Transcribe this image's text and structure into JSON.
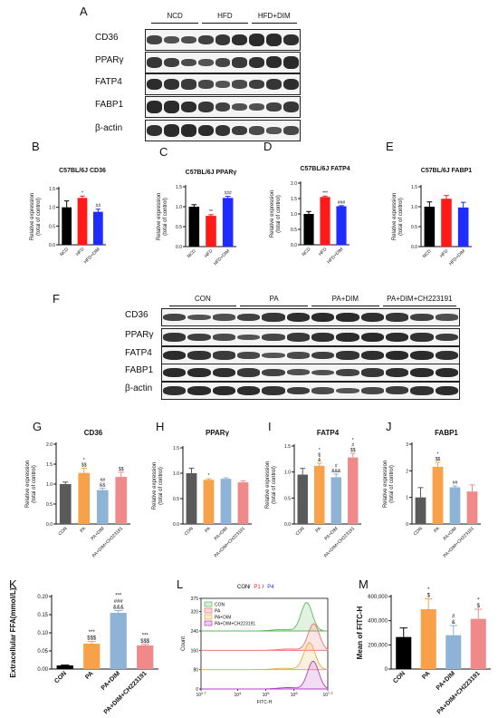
{
  "panels": {
    "A": "A",
    "B": "B",
    "C": "C",
    "D": "D",
    "E": "E",
    "F": "F",
    "G": "G",
    "H": "H",
    "I": "I",
    "J": "J",
    "K": "K",
    "L": "L",
    "M": "M"
  },
  "blotA": {
    "groups": [
      "NCD",
      "HFD",
      "HFD+DIM"
    ],
    "proteins": [
      "CD36",
      "PPARγ",
      "FATP4",
      "FABP1",
      "β-actin"
    ],
    "lanes": 9
  },
  "blotF": {
    "groups": [
      "CON",
      "PA",
      "PA+DIM",
      "PA+DIM+CH223191"
    ],
    "proteins": [
      "CD36",
      "PPARγ",
      "FATP4",
      "FABP1",
      "β-actin"
    ],
    "lanes": 12
  },
  "colors": {
    "black": "#000000",
    "red": "#ff1a1a",
    "blue": "#1f2bff",
    "gray": "#5a5a5a",
    "orange": "#f7a24a",
    "steel": "#8fb3d6",
    "salmon": "#f08a8a",
    "green": "#5cb85c",
    "purple": "#b040c0"
  },
  "chart_data": [
    {
      "id": "B",
      "type": "bar",
      "title": "C57BL/6J CD36",
      "ylabel": "Relative expression\n(total of control)",
      "categories": [
        "NCD",
        "HFD",
        "HFD+DIM"
      ],
      "values": [
        1.0,
        1.25,
        0.88
      ],
      "errors": [
        0.17,
        0.05,
        0.07
      ],
      "ylim": [
        0,
        1.5
      ],
      "yticks": [
        "0.0",
        "0.5",
        "1.0",
        "1.5"
      ],
      "annotations": [
        "",
        "*",
        "##"
      ],
      "colors": [
        "#000000",
        "#ff1a1a",
        "#1f2bff"
      ]
    },
    {
      "id": "C",
      "type": "bar",
      "title": "C57BL/6J PPARγ",
      "ylabel": "Relative expression\n(total of control)",
      "categories": [
        "NCD",
        "HFD",
        "HFD+DIM"
      ],
      "values": [
        1.0,
        0.77,
        1.22
      ],
      "errors": [
        0.05,
        0.03,
        0.04
      ],
      "ylim": [
        0,
        1.5
      ],
      "yticks": [
        "0.0",
        "0.5",
        "1.0",
        "1.5"
      ],
      "annotations": [
        "",
        "**",
        "###"
      ],
      "colors": [
        "#000000",
        "#ff1a1a",
        "#1f2bff"
      ]
    },
    {
      "id": "D",
      "type": "bar",
      "title": "C57BL/6J FATP4",
      "ylabel": "Relative expression\n(total of control)",
      "categories": [
        "NCD",
        "HFD",
        "HFD+DIM"
      ],
      "values": [
        1.0,
        1.55,
        1.25
      ],
      "errors": [
        0.08,
        0.03,
        0.02
      ],
      "ylim": [
        0,
        2.0
      ],
      "yticks": [
        "0.0",
        "0.5",
        "1.0",
        "1.5",
        "2.0"
      ],
      "annotations": [
        "",
        "***",
        "###"
      ],
      "colors": [
        "#000000",
        "#ff1a1a",
        "#1f2bff"
      ]
    },
    {
      "id": "E",
      "type": "bar",
      "title": "C57BL/6J FABP1",
      "ylabel": "Relative expression\n(total of control)",
      "categories": [
        "NCD",
        "HFD",
        "HFD+DIM"
      ],
      "values": [
        1.0,
        1.2,
        0.98
      ],
      "errors": [
        0.12,
        0.08,
        0.13
      ],
      "ylim": [
        0,
        1.5
      ],
      "yticks": [
        "0.0",
        "0.5",
        "1.0",
        "1.5"
      ],
      "annotations": [
        "",
        "",
        ""
      ],
      "colors": [
        "#000000",
        "#ff1a1a",
        "#1f2bff"
      ]
    },
    {
      "id": "G",
      "type": "bar",
      "title": "CD36",
      "ylabel": "Relative expression\n(total of control)",
      "categories": [
        "CON",
        "PA",
        "PA+DIM",
        "PA+DIM+CH223191"
      ],
      "values": [
        1.0,
        1.28,
        0.85,
        1.18
      ],
      "errors": [
        0.05,
        0.12,
        0.05,
        0.12
      ],
      "ylim": [
        0,
        2.0
      ],
      "yticks": [
        "0.0",
        "0.5",
        "1.0",
        "1.5",
        "2.0"
      ],
      "annotations": [
        "",
        "*\n$$",
        "##\n&&",
        "$$"
      ],
      "colors": [
        "#5a5a5a",
        "#f7a24a",
        "#8fb3d6",
        "#f08a8a"
      ]
    },
    {
      "id": "H",
      "type": "bar",
      "title": "PPARγ",
      "ylabel": "Relative expression\n(total of control)",
      "categories": [
        "CON",
        "PA",
        "PA+DIM",
        "PA+DIM+CH223191"
      ],
      "values": [
        1.0,
        0.87,
        0.89,
        0.82
      ],
      "errors": [
        0.1,
        0.02,
        0.02,
        0.03
      ],
      "ylim": [
        0,
        1.5
      ],
      "yticks": [
        "0.0",
        "0.5",
        "1.0",
        "1.5"
      ],
      "annotations": [
        "",
        "*",
        "",
        ""
      ],
      "colors": [
        "#5a5a5a",
        "#f7a24a",
        "#8fb3d6",
        "#f08a8a"
      ]
    },
    {
      "id": "I",
      "type": "bar",
      "title": "FATP4",
      "ylabel": "Relative expression\n(total of control)",
      "categories": [
        "CON",
        "PA",
        "PA+DIM",
        "PA+DIM+CH223191"
      ],
      "values": [
        0.95,
        1.12,
        0.9,
        1.28
      ],
      "errors": [
        0.12,
        0.05,
        0.06,
        0.08
      ],
      "ylim": [
        0,
        1.5
      ],
      "yticks": [
        "0.0",
        "0.5",
        "1.0",
        "1.5"
      ],
      "annotations": [
        "",
        "*\n$\n&",
        "#\n&&&",
        "*\n#\n$$"
      ],
      "colors": [
        "#5a5a5a",
        "#f7a24a",
        "#8fb3d6",
        "#f08a8a"
      ]
    },
    {
      "id": "J",
      "type": "bar",
      "title": "FABP1",
      "ylabel": "Relative expression\n(total of control)",
      "categories": [
        "CON",
        "PA",
        "PA+DIM",
        "PA+DIM+CH223191"
      ],
      "values": [
        1.0,
        2.15,
        1.38,
        1.22
      ],
      "errors": [
        0.37,
        0.17,
        0.05,
        0.25
      ],
      "ylim": [
        0,
        3.0
      ],
      "yticks": [
        "0",
        "1",
        "2",
        "3"
      ],
      "annotations": [
        "",
        "*\n$$",
        "##",
        ""
      ],
      "colors": [
        "#5a5a5a",
        "#f7a24a",
        "#8fb3d6",
        "#f08a8a"
      ]
    },
    {
      "id": "K",
      "type": "bar",
      "title": "",
      "ylabel": "Extracellular FFA(mmol/L)",
      "categories": [
        "CON",
        "PA",
        "PA+DIM",
        "PA+DIM+CH223191"
      ],
      "values": [
        0.01,
        0.07,
        0.155,
        0.065
      ],
      "errors": [
        0.001,
        0.006,
        0.006,
        0.003
      ],
      "ylim": [
        0,
        0.2
      ],
      "yticks": [
        "0.00",
        "0.05",
        "0.10",
        "0.15",
        "0.20"
      ],
      "annotations": [
        "",
        "***\n$$$",
        "***\n###\n&&&",
        "***\n$$$"
      ],
      "colors": [
        "#000000",
        "#f7a24a",
        "#8fb3d6",
        "#f08a8a"
      ]
    },
    {
      "id": "M",
      "type": "bar",
      "title": "",
      "ylabel": "Mean of FITC-H",
      "categories": [
        "CON",
        "PA",
        "PA+DIM",
        "PA+DIM+CH223191"
      ],
      "values": [
        265000,
        495000,
        280000,
        415000
      ],
      "errors": [
        75000,
        85000,
        80000,
        80000
      ],
      "ylim": [
        0,
        600000
      ],
      "yticks": [
        "0",
        "200,000",
        "400,000",
        "600,000"
      ],
      "annotations": [
        "",
        "*\n$",
        "#\n&",
        "*\n$"
      ],
      "colors": [
        "#000000",
        "#f7a24a",
        "#8fb3d6",
        "#f08a8a"
      ]
    },
    {
      "id": "L",
      "type": "histogram-overlay",
      "title": "CON / P1 / P4",
      "title_parts": [
        "CON",
        "/",
        "P1",
        "/",
        "P4"
      ],
      "title_colors": [
        "#000000",
        "#000000",
        "#ff1a1a",
        "#000000",
        "#1f2bff"
      ],
      "xlabel": "FITC-H",
      "ylabel": "Count",
      "xticks": [
        "10^2.7",
        "10^4",
        "10^5",
        "10^6",
        "10^7.2"
      ],
      "xrange_log10": [
        2.7,
        7.2
      ],
      "yticks": [
        "0",
        "80",
        "160",
        "240",
        "320",
        "375"
      ],
      "ylim": [
        0,
        375
      ],
      "series": [
        {
          "name": "CON",
          "color": "#5cb85c",
          "offset": 240,
          "peak_log10": 6.45,
          "height": 118
        },
        {
          "name": "PA",
          "color": "#f07070",
          "offset": 160,
          "peak_log10": 6.7,
          "height": 110
        },
        {
          "name": "PA+DIM",
          "color": "#e0b040",
          "offset": 80,
          "peak_log10": 6.55,
          "height": 112
        },
        {
          "name": "PA+DIM+CH223191",
          "color": "#b040c0",
          "offset": 0,
          "peak_log10": 6.68,
          "height": 115
        }
      ]
    }
  ]
}
